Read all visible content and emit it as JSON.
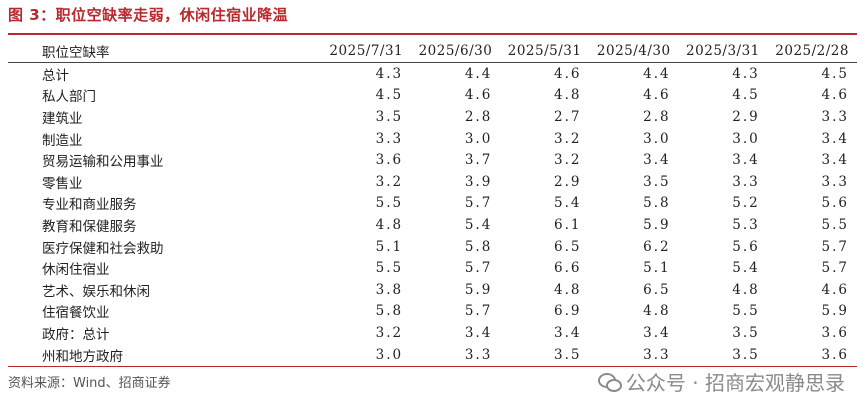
{
  "title": "图 3：职位空缺率走弱，休闲住宿业降温",
  "table": {
    "header_label": "职位空缺率",
    "columns": [
      "2025/7/31",
      "2025/6/30",
      "2025/5/31",
      "2025/4/30",
      "2025/3/31",
      "2025/2/28"
    ],
    "rows": [
      {
        "label": "总计",
        "level": 0,
        "values": [
          "4.3",
          "4.4",
          "4.6",
          "4.4",
          "4.3",
          "4.5"
        ]
      },
      {
        "label": "私人部门",
        "level": 1,
        "values": [
          "4.5",
          "4.6",
          "4.8",
          "4.6",
          "4.5",
          "4.6"
        ]
      },
      {
        "label": "建筑业",
        "level": 2,
        "values": [
          "3.5",
          "2.8",
          "2.7",
          "2.8",
          "2.9",
          "3.3"
        ]
      },
      {
        "label": "制造业",
        "level": 2,
        "values": [
          "3.3",
          "3.0",
          "3.2",
          "3.0",
          "3.0",
          "3.4"
        ]
      },
      {
        "label": "贸易运输和公用事业",
        "level": 2,
        "values": [
          "3.6",
          "3.7",
          "3.2",
          "3.4",
          "3.4",
          "3.4"
        ]
      },
      {
        "label": "零售业",
        "level": 3,
        "values": [
          "3.2",
          "3.9",
          "2.9",
          "3.5",
          "3.3",
          "3.3"
        ]
      },
      {
        "label": "专业和商业服务",
        "level": 2,
        "values": [
          "5.5",
          "5.7",
          "5.4",
          "5.8",
          "5.2",
          "5.6"
        ]
      },
      {
        "label": "教育和保健服务",
        "level": 2,
        "values": [
          "4.8",
          "5.4",
          "6.1",
          "5.9",
          "5.3",
          "5.5"
        ]
      },
      {
        "label": "医疗保健和社会救助",
        "level": 3,
        "values": [
          "5.1",
          "5.8",
          "6.5",
          "6.2",
          "5.6",
          "5.7"
        ]
      },
      {
        "label": "休闲住宿业",
        "level": 2,
        "values": [
          "5.5",
          "5.7",
          "6.6",
          "5.1",
          "5.4",
          "5.7"
        ]
      },
      {
        "label": "艺术、娱乐和休闲",
        "level": 3,
        "values": [
          "3.8",
          "5.9",
          "4.8",
          "6.5",
          "4.8",
          "4.6"
        ]
      },
      {
        "label": "住宿餐饮业",
        "level": 3,
        "values": [
          "5.8",
          "5.7",
          "6.9",
          "4.8",
          "5.5",
          "5.9"
        ]
      },
      {
        "label": "政府：总计",
        "level": 1,
        "values": [
          "3.2",
          "3.4",
          "3.4",
          "3.4",
          "3.5",
          "3.6"
        ]
      },
      {
        "label": "州和地方政府",
        "level": 2,
        "values": [
          "3.0",
          "3.3",
          "3.5",
          "3.3",
          "3.5",
          "3.6"
        ]
      }
    ]
  },
  "footer": {
    "source": "资料来源：Wind、招商证券",
    "watermark": "公众号 · 招商宏观静思录"
  },
  "colors": {
    "accent": "#b8292e"
  }
}
